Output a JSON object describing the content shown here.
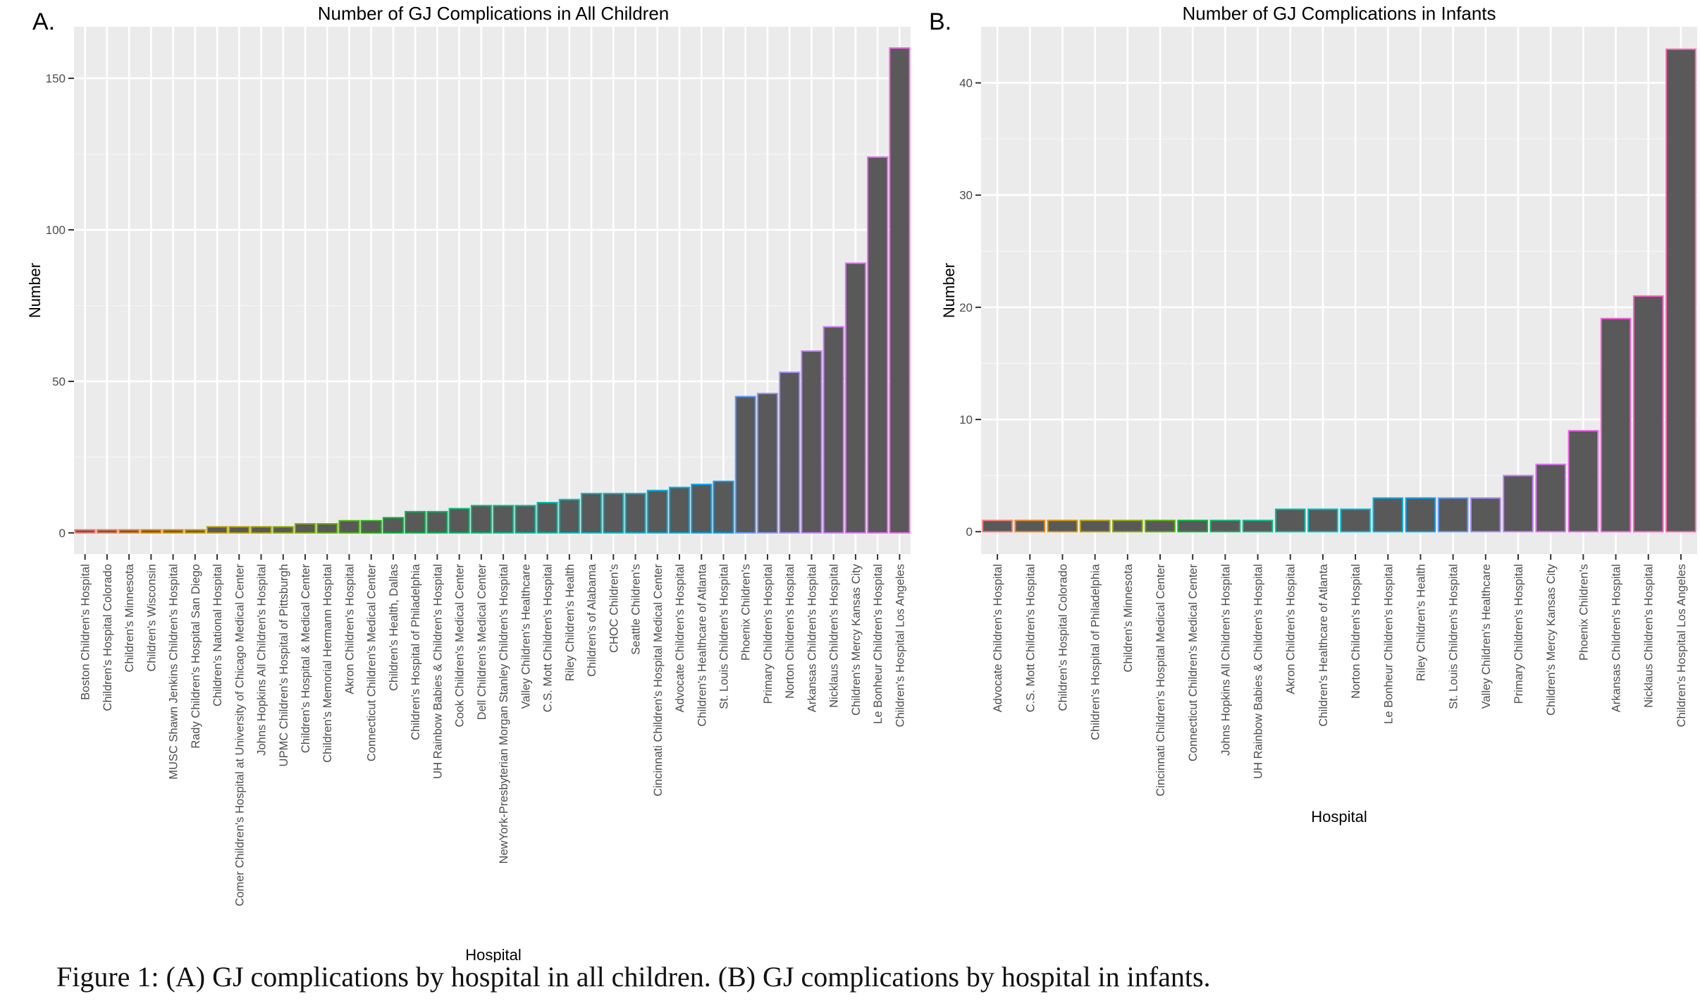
{
  "caption": "Figure 1: (A) GJ complications by hospital in all children. (B) GJ complications by hospital in infants.",
  "chart_data": [
    {
      "panel_label": "A.",
      "type": "bar",
      "title": "Number of GJ Complications in All Children",
      "xlabel": "Hospital",
      "ylabel": "Number",
      "ylim": [
        -7,
        167
      ],
      "yticks": [
        0,
        50,
        100,
        150
      ],
      "grid": true,
      "bar_fill": "#595959",
      "categories": [
        "Boston Children's Hospital",
        "Children's Hospital Colorado",
        "Children's Minnesota",
        "Children's Wisconsin",
        "MUSC Shawn Jenkins Children's Hospital",
        "Rady Children's Hospital San Diego",
        "Children's National Hospital",
        "Comer Children's Hospital at University of Chicago Medical Center",
        "Johns Hopkins All Children's Hospital",
        "UPMC Children's Hospital of Pittsburgh",
        "Children's Hospital & Medical Center",
        "Children's Memorial Hermann Hospital",
        "Akron Children's Hospital",
        "Connecticut Children's Medical Center",
        "Children's Health, Dallas",
        "Children's Hospital of Philadelphia",
        "UH Rainbow Babies & Children's Hospital",
        "Cook Children's Medical Center",
        "Dell Children's Medical Center",
        "NewYork-Presbyterian Morgan Stanley Children's Hospital",
        "Valley Children's Healthcare",
        "C.S. Mott Children's Hospital",
        "Riley Children's Health",
        "Children's of Alabama",
        "CHOC Children's",
        "Seattle Children's",
        "Cincinnati Children's Hospital Medical Center",
        "Advocate Children's Hospital",
        "Children's Healthcare of Atlanta",
        "St. Louis Children's Hospital",
        "Phoenix Children's",
        "Primary Children's Hospital",
        "Norton Children's Hospital",
        "Arkansas Children's Hospital",
        "Nicklaus Children's Hospital",
        "Children's Mercy Kansas City",
        "Le Bonheur Children's Hospital",
        "Children's Hospital Los Angeles"
      ],
      "values": [
        1,
        1,
        1,
        1,
        1,
        1,
        2,
        2,
        2,
        2,
        3,
        3,
        4,
        4,
        5,
        7,
        7,
        8,
        9,
        9,
        9,
        10,
        11,
        13,
        13,
        13,
        14,
        15,
        16,
        17,
        45,
        46,
        53,
        60,
        68,
        89,
        124,
        160
      ],
      "outline_colors": [
        "#F8766D",
        "#F27D52",
        "#EA8331",
        "#E08B00",
        "#D69100",
        "#CB9700",
        "#BF9C00",
        "#B2A100",
        "#A3A500",
        "#93AA00",
        "#80AE00",
        "#69B100",
        "#4DB400",
        "#19B600",
        "#00B92F",
        "#00BB47",
        "#00BD5B",
        "#00BE6C",
        "#00C07D",
        "#00C08D",
        "#00C19C",
        "#00C1AB",
        "#00C0B8",
        "#00BFC4",
        "#00BDD0",
        "#00BADA",
        "#00B6E4",
        "#00B1EC",
        "#00ABF3",
        "#00A4F9",
        "#619CFF",
        "#8D95FF",
        "#A98BFF",
        "#BE80FF",
        "#CF78FF",
        "#DD71FA",
        "#E76BF3",
        "#F066EA"
      ]
    },
    {
      "panel_label": "B.",
      "type": "bar",
      "title": "Number of GJ Complications in Infants",
      "xlabel": "Hospital",
      "ylabel": "Number",
      "ylim": [
        -2,
        45
      ],
      "yticks": [
        0,
        10,
        20,
        30,
        40
      ],
      "grid": true,
      "bar_fill": "#595959",
      "categories": [
        "Advocate Children's Hospital",
        "C.S. Mott Children's Hospital",
        "Children's Hospital Colorado",
        "Children's Hospital of Philadelphia",
        "Children's Minnesota",
        "Cincinnati Children's Hospital Medical Center",
        "Connecticut Children's Medical Center",
        "Johns Hopkins All Children's Hospital",
        "UH Rainbow Babies & Children's Hospital",
        "Akron Children's Hospital",
        "Children's Healthcare of Atlanta",
        "Norton Children's Hospital",
        "Le Bonheur Children's Hospital",
        "Riley Children's Health",
        "St. Louis Children's Hospital",
        "Valley Children's Healthcare",
        "Primary Children's Hospital",
        "Children's Mercy Kansas City",
        "Phoenix Children's",
        "Arkansas Children's Hospital",
        "Nicklaus Children's Hospital",
        "Children's Hospital Los Angeles"
      ],
      "values": [
        1,
        1,
        1,
        1,
        1,
        1,
        1,
        1,
        1,
        2,
        2,
        2,
        3,
        3,
        3,
        3,
        5,
        6,
        9,
        19,
        21,
        43
      ],
      "outline_colors": [
        "#F8766D",
        "#E7851E",
        "#D09400",
        "#B2A100",
        "#8BAB00",
        "#55B400",
        "#00BA38",
        "#00BE6C",
        "#00C08D",
        "#00C1A9",
        "#00BFC4",
        "#00BBDC",
        "#00B4EF",
        "#00A9FF",
        "#619CFF",
        "#A58AFF",
        "#C77CFF",
        "#DF70F8",
        "#F066EA",
        "#FA62DB",
        "#FF61C9",
        "#FF64B0"
      ]
    }
  ]
}
